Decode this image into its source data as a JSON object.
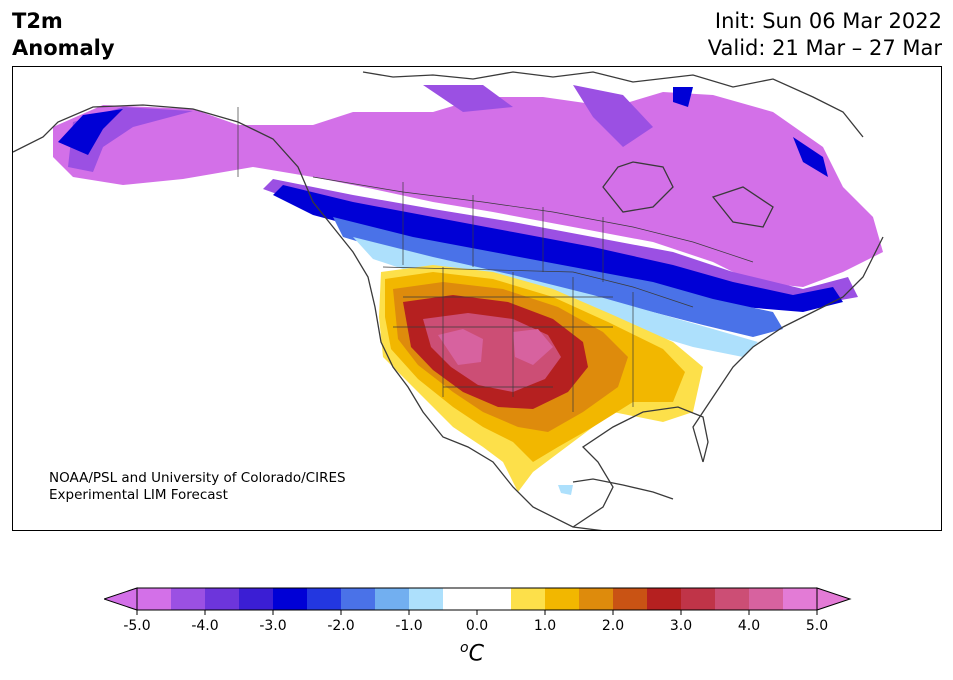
{
  "title": {
    "left_line1": "T2m",
    "left_line2": "Anomaly",
    "right_line1": "Init: Sun 06 Mar 2022",
    "right_line2": "Valid: 21 Mar – 27 Mar"
  },
  "credit": {
    "line1": "NOAA/PSL and University of Colorado/CIRES",
    "line2": "Experimental LIM Forecast"
  },
  "colorbar": {
    "units_sup": "o",
    "units_base": "C",
    "ticks": [
      "-5.0",
      "-4.0",
      "-3.0",
      "-2.0",
      "-1.0",
      "0.0",
      "1.0",
      "2.0",
      "3.0",
      "4.0",
      "5.0"
    ],
    "colors": [
      "#d370e8",
      "#9b50e3",
      "#6d35db",
      "#3b1ed4",
      "#0000d6",
      "#2337e0",
      "#4a72e8",
      "#72aff0",
      "#ade0fc",
      "#ffffff",
      "#ffffff",
      "#fde04a",
      "#f2b700",
      "#de8b0c",
      "#c95314",
      "#b52020",
      "#c03448",
      "#cc4e75",
      "#d7629f",
      "#e37bd6"
    ],
    "under_color": "#d370e8",
    "over_color": "#e37bd6"
  },
  "colors": {
    "cold_extreme": "#d370e8",
    "cold_strong": "#0000d6",
    "warm_extreme": "#cc4e75",
    "warm_mild": "#fde04a",
    "coastline": "#3a3a3a"
  }
}
